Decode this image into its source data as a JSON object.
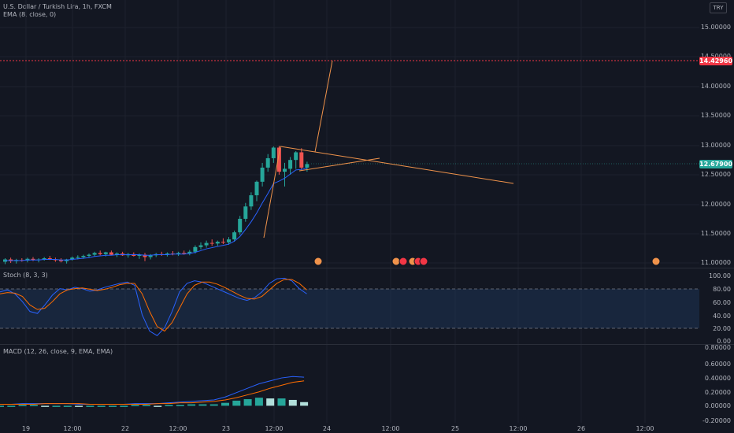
{
  "header": {
    "symbol_line": "U.S. Dollar / Turkish Lira, 1h, FXCM",
    "indicator_ema": "EMA (8, close, 0)",
    "currency_button": "TRY"
  },
  "main_axis": {
    "ticks": [
      "15.00000",
      "14.50000",
      "14.00000",
      "13.50000",
      "13.00000",
      "12.50000",
      "12.00000",
      "11.50000",
      "11.00000"
    ],
    "alert_price": "14.42960",
    "last_price": "12.67900",
    "alert_color": "#f23645",
    "last_color": "#26a69a"
  },
  "stoch": {
    "label": "Stoch (8, 3, 3)",
    "ticks": [
      "100.00",
      "80.00",
      "60.00",
      "40.00",
      "20.00",
      "0.00"
    ]
  },
  "macd": {
    "label": "MACD (12, 26, close, 9, EMA, EMA)",
    "ticks": [
      "0.80000",
      "0.60000",
      "0.40000",
      "0.20000",
      "0.00000",
      "-0.20000"
    ]
  },
  "time_axis": [
    "19",
    "12:00",
    "22",
    "12:00",
    "23",
    "12:00",
    "24",
    "12:00",
    "25",
    "12:00",
    "26",
    "12:00"
  ],
  "events_icon": "flag-icon",
  "chart_data": {
    "type": "candlestick",
    "title": "U.S. Dollar / Turkish Lira, 1h, FXCM",
    "ylim": [
      10.95,
      15.2
    ],
    "candles": [
      [
        11.02,
        11.08,
        10.98,
        11.06
      ],
      [
        11.06,
        11.09,
        11.0,
        11.03
      ],
      [
        11.03,
        11.07,
        10.99,
        11.05
      ],
      [
        11.05,
        11.08,
        11.02,
        11.04
      ],
      [
        11.04,
        11.09,
        11.01,
        11.07
      ],
      [
        11.07,
        11.1,
        11.03,
        11.05
      ],
      [
        11.05,
        11.08,
        11.01,
        11.06
      ],
      [
        11.06,
        11.1,
        11.04,
        11.08
      ],
      [
        11.08,
        11.12,
        11.05,
        11.06
      ],
      [
        11.06,
        11.09,
        11.02,
        11.05
      ],
      [
        11.05,
        11.08,
        11.01,
        11.03
      ],
      [
        11.03,
        11.07,
        10.99,
        11.06
      ],
      [
        11.06,
        11.11,
        11.04,
        11.09
      ],
      [
        11.09,
        11.13,
        11.06,
        11.1
      ],
      [
        11.1,
        11.14,
        11.07,
        11.12
      ],
      [
        11.12,
        11.16,
        11.09,
        11.14
      ],
      [
        11.14,
        11.19,
        11.11,
        11.17
      ],
      [
        11.17,
        11.21,
        11.13,
        11.15
      ],
      [
        11.15,
        11.19,
        11.11,
        11.18
      ],
      [
        11.18,
        11.21,
        11.13,
        11.14
      ],
      [
        11.14,
        11.18,
        11.1,
        11.16
      ],
      [
        11.16,
        11.19,
        11.12,
        11.13
      ],
      [
        11.13,
        11.17,
        11.09,
        11.15
      ],
      [
        11.15,
        11.18,
        11.11,
        11.12
      ],
      [
        11.12,
        11.16,
        11.07,
        11.14
      ],
      [
        11.14,
        11.17,
        11.03,
        11.1
      ],
      [
        11.1,
        11.15,
        11.06,
        11.13
      ],
      [
        11.13,
        11.17,
        11.1,
        11.15
      ],
      [
        11.15,
        11.19,
        11.12,
        11.14
      ],
      [
        11.14,
        11.18,
        11.11,
        11.16
      ],
      [
        11.16,
        11.2,
        11.13,
        11.15
      ],
      [
        11.15,
        11.19,
        11.12,
        11.17
      ],
      [
        11.17,
        11.21,
        11.14,
        11.16
      ],
      [
        11.16,
        11.22,
        11.13,
        11.19
      ],
      [
        11.19,
        11.3,
        11.16,
        11.27
      ],
      [
        11.27,
        11.35,
        11.23,
        11.3
      ],
      [
        11.3,
        11.38,
        11.26,
        11.34
      ],
      [
        11.34,
        11.4,
        11.29,
        11.33
      ],
      [
        11.33,
        11.38,
        11.29,
        11.36
      ],
      [
        11.36,
        11.42,
        11.32,
        11.35
      ],
      [
        11.35,
        11.44,
        11.31,
        11.4
      ],
      [
        11.4,
        11.55,
        11.36,
        11.52
      ],
      [
        11.52,
        11.8,
        11.48,
        11.75
      ],
      [
        11.75,
        12.02,
        11.7,
        11.96
      ],
      [
        11.96,
        12.2,
        11.9,
        12.15
      ],
      [
        12.15,
        12.4,
        12.05,
        12.38
      ],
      [
        12.38,
        12.7,
        12.3,
        12.62
      ],
      [
        12.62,
        12.85,
        12.55,
        12.78
      ],
      [
        12.78,
        12.98,
        12.7,
        12.96
      ],
      [
        12.96,
        12.99,
        12.5,
        12.55
      ],
      [
        12.55,
        12.7,
        12.3,
        12.6
      ],
      [
        12.6,
        12.8,
        12.5,
        12.75
      ],
      [
        12.75,
        12.9,
        12.6,
        12.88
      ],
      [
        12.88,
        12.95,
        12.58,
        12.62
      ],
      [
        12.62,
        12.72,
        12.55,
        12.68
      ]
    ],
    "ema": [
      11.04,
      11.04,
      11.04,
      11.04,
      11.05,
      11.05,
      11.05,
      11.06,
      11.06,
      11.06,
      11.05,
      11.05,
      11.06,
      11.07,
      11.08,
      11.09,
      11.11,
      11.12,
      11.13,
      11.13,
      11.14,
      11.14,
      11.14,
      11.14,
      11.14,
      11.13,
      11.13,
      11.14,
      11.14,
      11.14,
      11.15,
      11.15,
      11.15,
      11.16,
      11.18,
      11.21,
      11.24,
      11.26,
      11.28,
      11.3,
      11.32,
      11.37,
      11.45,
      11.57,
      11.7,
      11.85,
      12.02,
      12.18,
      12.35,
      12.39,
      12.44,
      12.51,
      12.58,
      12.59,
      12.61
    ],
    "stoch_k": [
      75,
      78,
      72,
      60,
      45,
      42,
      55,
      70,
      80,
      78,
      82,
      80,
      76,
      78,
      82,
      85,
      88,
      90,
      85,
      40,
      15,
      8,
      20,
      45,
      75,
      88,
      92,
      90,
      85,
      80,
      75,
      70,
      65,
      62,
      66,
      75,
      88,
      95,
      96,
      92,
      80,
      72
    ],
    "stoch_d": [
      72,
      74,
      73,
      68,
      55,
      48,
      50,
      60,
      72,
      78,
      80,
      81,
      79,
      77,
      79,
      82,
      86,
      88,
      88,
      72,
      45,
      22,
      15,
      28,
      50,
      72,
      85,
      90,
      90,
      87,
      82,
      76,
      70,
      65,
      64,
      68,
      78,
      88,
      94,
      94,
      88,
      78
    ],
    "macd_line": [
      0.02,
      0.02,
      0.03,
      0.03,
      0.03,
      0.03,
      0.03,
      0.02,
      0.02,
      0.02,
      0.02,
      0.02,
      0.03,
      0.03,
      0.03,
      0.04,
      0.05,
      0.06,
      0.07,
      0.08,
      0.12,
      0.18,
      0.24,
      0.3,
      0.34,
      0.38,
      0.4,
      0.39
    ],
    "signal_line": [
      0.02,
      0.02,
      0.02,
      0.02,
      0.03,
      0.03,
      0.03,
      0.03,
      0.02,
      0.02,
      0.02,
      0.02,
      0.02,
      0.02,
      0.03,
      0.03,
      0.04,
      0.04,
      0.05,
      0.06,
      0.08,
      0.11,
      0.15,
      0.19,
      0.24,
      0.28,
      0.32,
      0.34
    ],
    "histogram": [
      0.0,
      0.0,
      0.01,
      0.01,
      0.0,
      0.0,
      0.0,
      -0.01,
      0.0,
      0.0,
      0.0,
      0.0,
      0.01,
      0.01,
      0.0,
      0.01,
      0.01,
      0.02,
      0.02,
      0.02,
      0.04,
      0.07,
      0.09,
      0.11,
      0.1,
      0.1,
      0.08,
      0.05
    ],
    "alert_level": 14.4296,
    "last_level": 12.679
  }
}
